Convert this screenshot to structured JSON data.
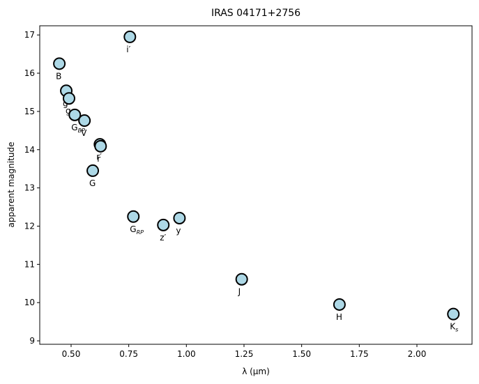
{
  "chart_data": {
    "type": "scatter",
    "title": "IRAS 04171+2756",
    "xlabel": "λ (μm)",
    "ylabel": "apparent magnitude",
    "x": [
      0.449,
      0.755,
      0.479,
      0.491,
      0.516,
      0.558,
      0.625,
      0.628,
      0.594,
      0.77,
      0.9,
      0.97,
      1.24,
      1.664,
      2.158
    ],
    "values": [
      16.25,
      16.95,
      15.54,
      15.34,
      14.91,
      14.76,
      14.14,
      14.09,
      13.45,
      12.25,
      12.03,
      12.21,
      10.61,
      9.95,
      9.7
    ],
    "labels": [
      "B",
      "i′",
      "g′",
      "g",
      "G",
      "V",
      "r′",
      "r",
      "G",
      "G",
      "z′",
      "y",
      "J",
      "H",
      "K"
    ],
    "label_subscripts": [
      null,
      null,
      null,
      null,
      "BP",
      null,
      null,
      null,
      null,
      "RP",
      null,
      null,
      null,
      null,
      "s"
    ],
    "color": "#add8e6",
    "edgecolor": "#000000",
    "xlim": [
      0.364,
      2.239
    ],
    "xticks": [
      {
        "value": 0.5,
        "label": "0.50"
      },
      {
        "value": 0.75,
        "label": "0.75"
      },
      {
        "value": 1.0,
        "label": "1.00"
      },
      {
        "value": 1.25,
        "label": "1.25"
      },
      {
        "value": 1.5,
        "label": "1.50"
      },
      {
        "value": 1.75,
        "label": "1.75"
      },
      {
        "value": 2.0,
        "label": "2.00"
      }
    ],
    "ylim": [
      8.91,
      17.24
    ],
    "yticks": [
      9,
      10,
      11,
      12,
      13,
      14,
      15,
      16,
      17
    ],
    "grid": false
  }
}
